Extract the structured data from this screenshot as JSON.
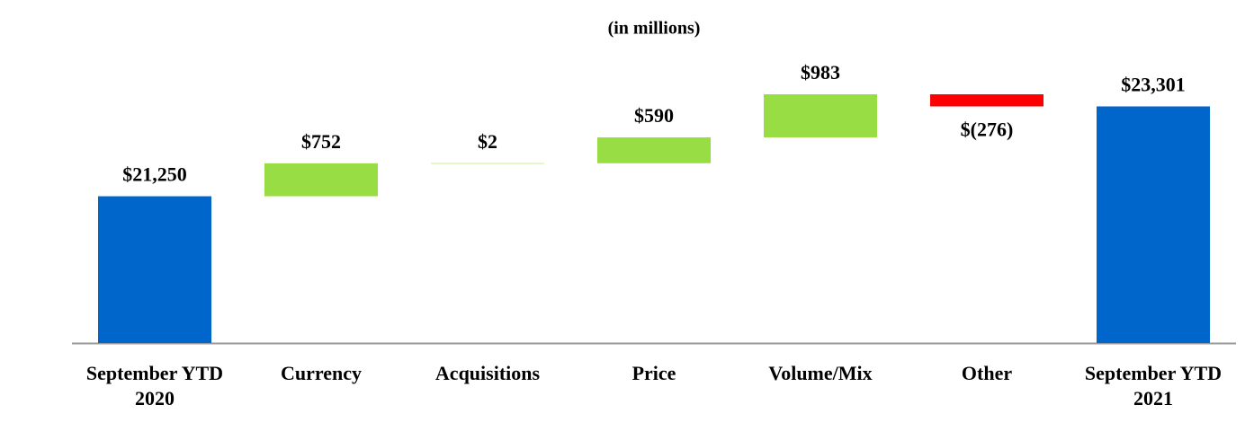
{
  "chart_data": {
    "type": "waterfall",
    "title": "(in millions)",
    "categories": [
      "September YTD 2020",
      "Currency",
      "Acquisitions",
      "Price",
      "Volume/Mix",
      "Other",
      "September YTD 2021"
    ],
    "measure": [
      "absolute",
      "relative",
      "relative",
      "relative",
      "relative",
      "relative",
      "total"
    ],
    "values": [
      21250,
      752,
      2,
      590,
      983,
      -276,
      23301
    ],
    "value_labels": [
      "$21,250",
      "$752",
      "$2",
      "$590",
      "$983",
      "$(276)",
      "$23,301"
    ],
    "colors": [
      "#0066cc",
      "#99dd44",
      "#99dd44",
      "#99dd44",
      "#99dd44",
      "#ff0000",
      "#0066cc"
    ],
    "ylim": [
      17900,
      24500
    ]
  }
}
